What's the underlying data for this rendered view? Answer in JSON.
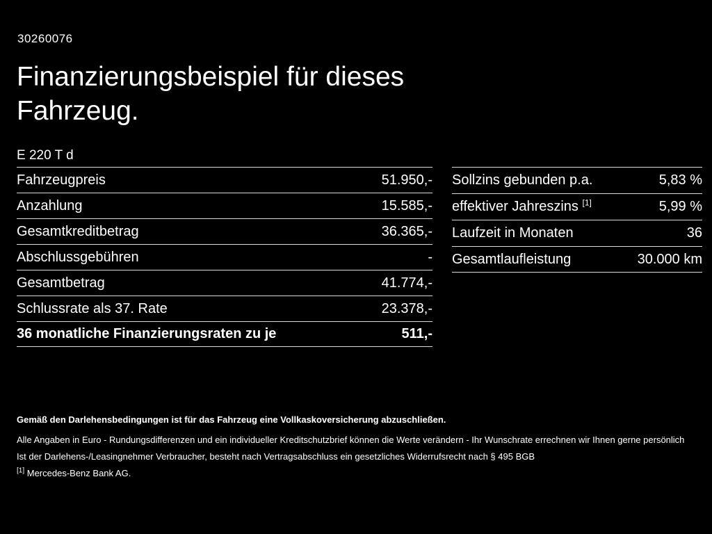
{
  "page": {
    "id": "30260076",
    "title_line1": "Finanzierungsbeispiel für dieses",
    "title_line2": "Fahrzeug.",
    "model": "E 220 T d"
  },
  "left_table": {
    "rows": [
      {
        "label": "Fahrzeugpreis",
        "value": "51.950,-"
      },
      {
        "label": "Anzahlung",
        "value": "15.585,-"
      },
      {
        "label": "Gesamtkreditbetrag",
        "value": "36.365,-"
      },
      {
        "label": "Abschlussgebühren",
        "value": "-"
      },
      {
        "label": "Gesamtbetrag",
        "value": "41.774,-"
      },
      {
        "label": "Schlussrate als 37. Rate",
        "value": "23.378,-"
      },
      {
        "label": "36 monatliche Finanzierungsraten zu je",
        "value": "511,-"
      }
    ]
  },
  "right_table": {
    "rows": [
      {
        "label": "Sollzins gebunden p.a.",
        "sup": "",
        "value": "5,83 %"
      },
      {
        "label": "effektiver Jahreszins",
        "sup": "[1]",
        "value": "5,99 %"
      },
      {
        "label": "Laufzeit in Monaten",
        "sup": "",
        "value": "36"
      },
      {
        "label": "Gesamtlaufleistung",
        "sup": "",
        "value": "30.000 km"
      }
    ]
  },
  "footer": {
    "line1": "Gemäß den Darlehensbedingungen ist für das Fahrzeug eine Vollkaskoversicherung abzuschließen.",
    "line2": "Alle Angaben in Euro - Rundungsdifferenzen und ein individueller Kreditschutzbrief können die Werte verändern - Ihr Wunschrate errechnen wir Ihnen gerne persönlich",
    "line3": "Ist der Darlehens-/Leasingnehmer Verbraucher, besteht nach Vertragsabschluss ein gesetzliches Widerrufsrecht nach § 495 BGB",
    "footnote_marker": "[1]",
    "footnote_text": "Mercedes-Benz Bank AG."
  }
}
